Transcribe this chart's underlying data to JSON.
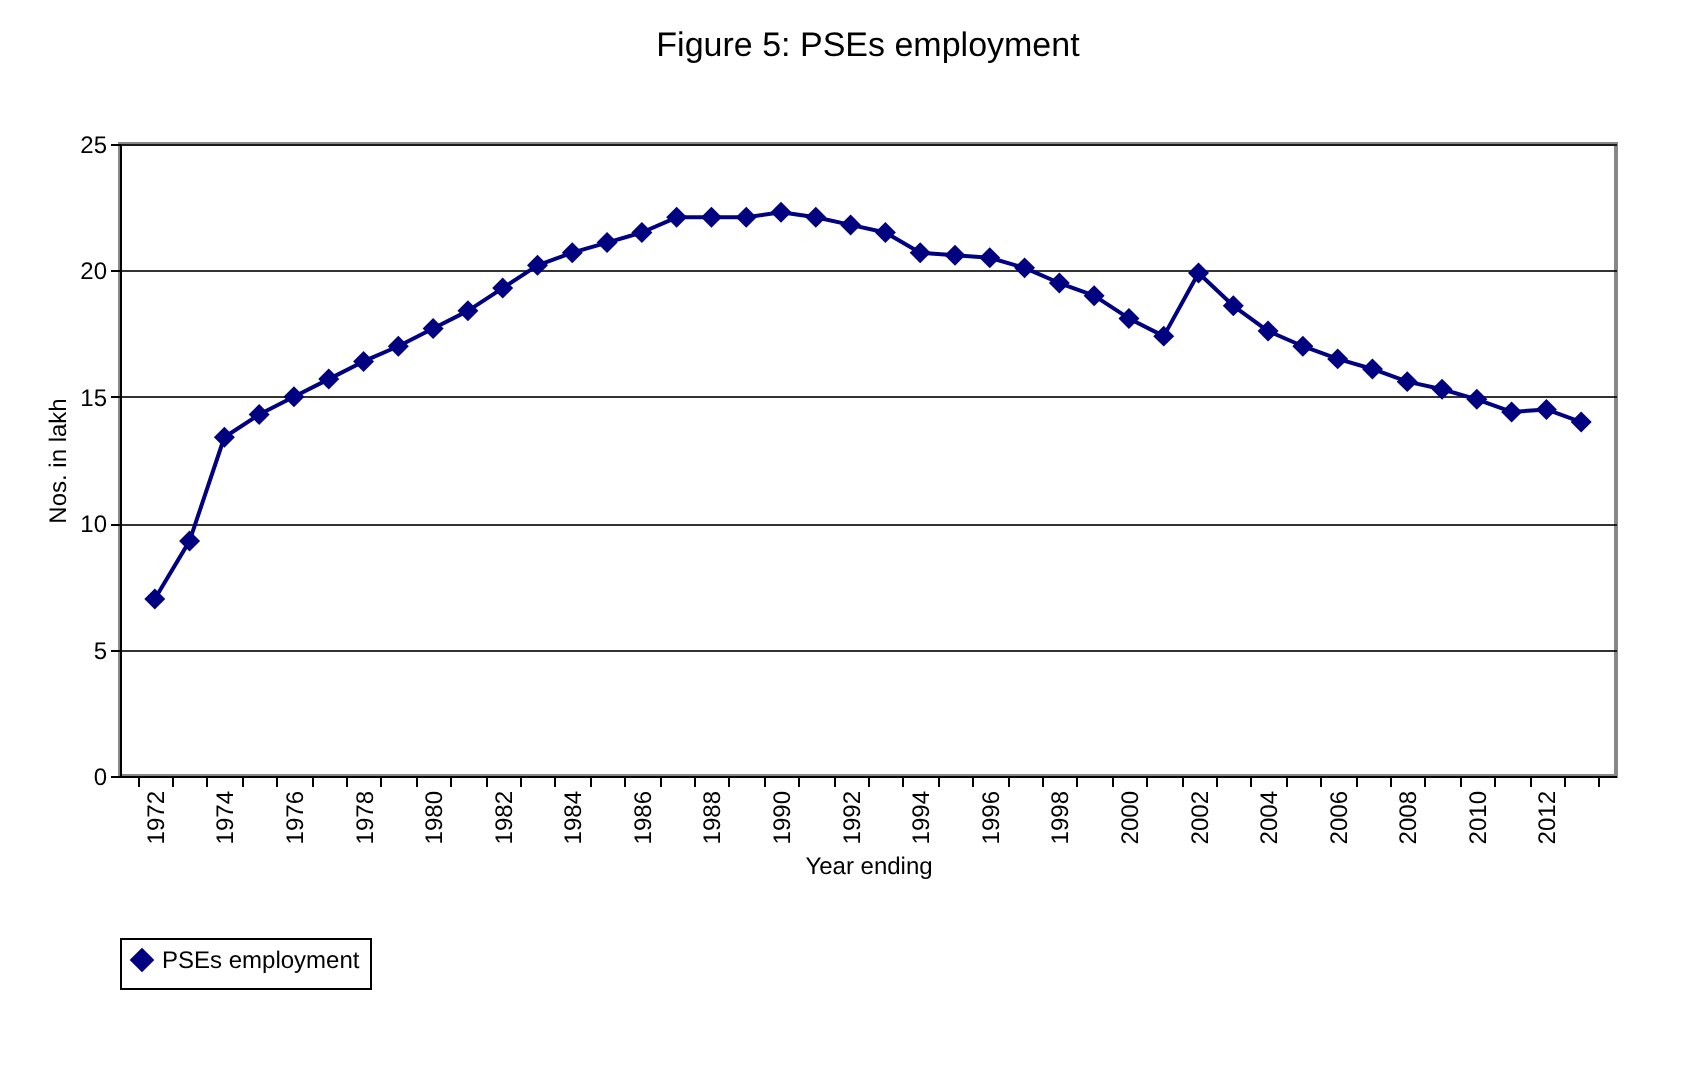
{
  "chart_data": {
    "type": "line",
    "title": "Figure 5: PSEs employment",
    "xlabel": "Year ending",
    "ylabel": "Nos. in lakh",
    "categories": [
      "1972",
      null,
      "1974",
      null,
      "1976",
      null,
      "1978",
      null,
      "1980",
      null,
      "1982",
      null,
      "1984",
      null,
      "1986",
      null,
      "1988",
      null,
      "1990",
      null,
      "1992",
      null,
      "1994",
      null,
      "1996",
      null,
      "1998",
      null,
      "2000",
      null,
      "2002",
      null,
      "2004",
      null,
      "2006",
      null,
      "2008",
      null,
      "2010",
      null,
      "2012",
      null
    ],
    "series": [
      {
        "name": "PSEs employment",
        "color": "#000080",
        "values": [
          7.0,
          9.3,
          13.4,
          14.3,
          15.0,
          15.7,
          16.4,
          17.0,
          17.7,
          18.4,
          19.3,
          20.2,
          20.7,
          21.1,
          21.5,
          22.1,
          22.1,
          22.1,
          22.3,
          22.1,
          21.8,
          21.5,
          20.7,
          20.6,
          20.5,
          20.1,
          19.5,
          19.0,
          18.1,
          17.4,
          19.9,
          18.6,
          17.6,
          17.0,
          16.5,
          16.1,
          15.6,
          15.3,
          14.9,
          14.4,
          14.5,
          14.0
        ]
      }
    ],
    "ylim": [
      0,
      25
    ],
    "yticks": [
      0,
      5,
      10,
      15,
      20,
      25
    ],
    "grid": "y",
    "legend": "bottom",
    "marker": "diamond",
    "line_style": "solid"
  }
}
